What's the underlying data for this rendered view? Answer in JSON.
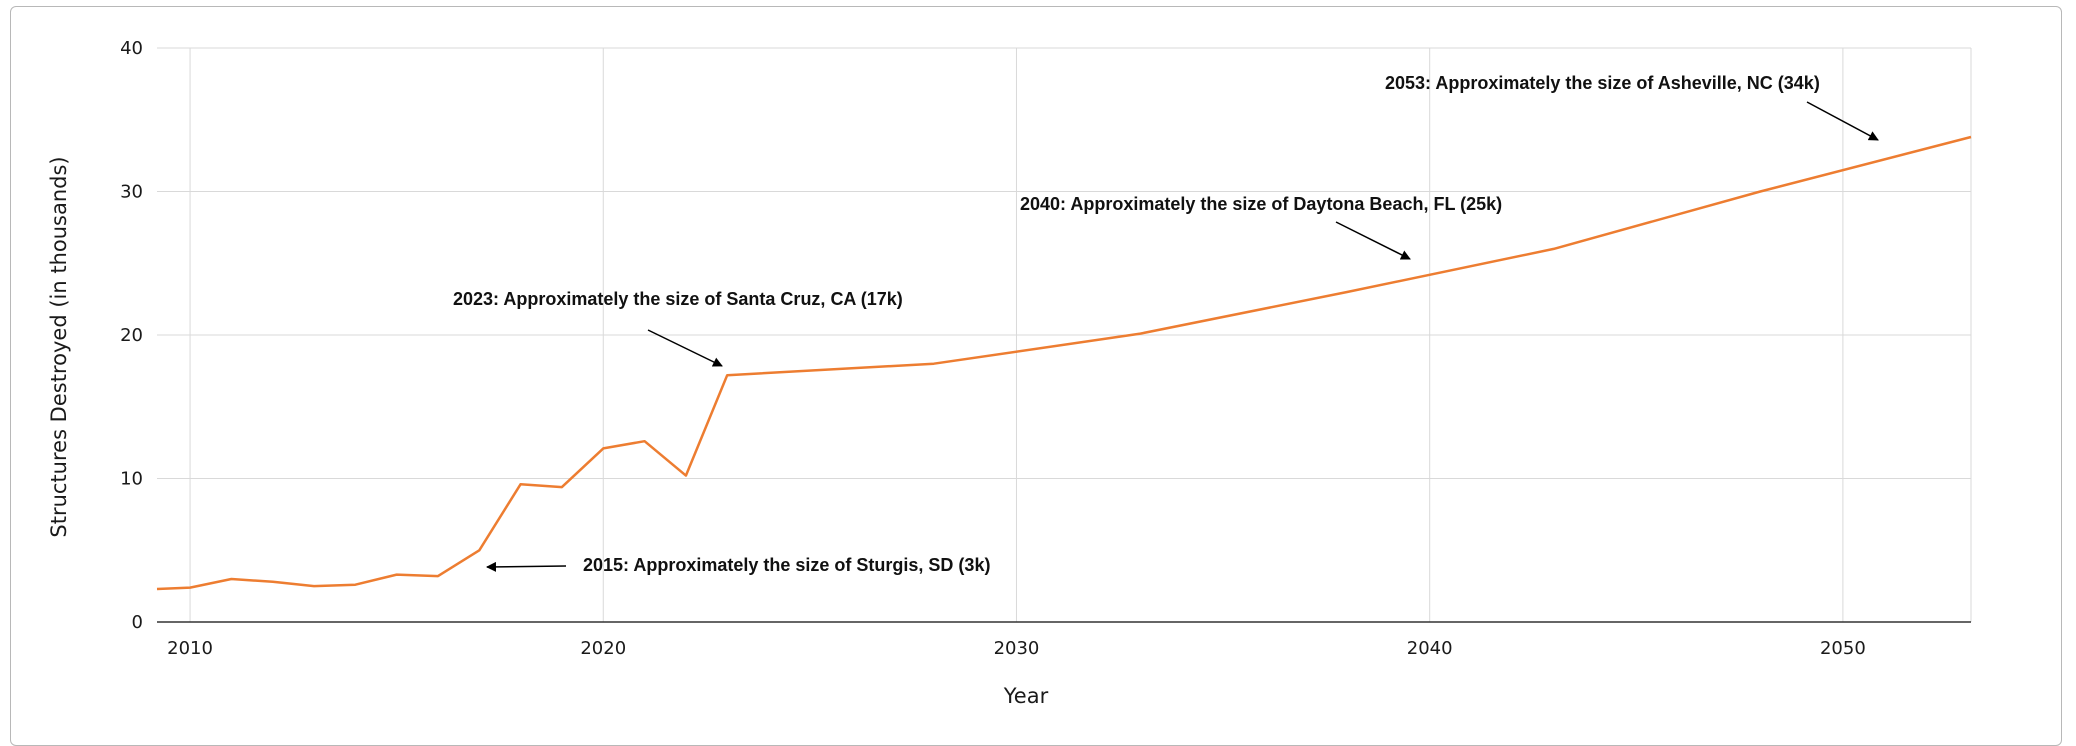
{
  "chart_data": {
    "type": "line",
    "title": "",
    "xlabel": "Year",
    "ylabel": "Structures Destroyed (in thousands)",
    "xlim": [
      2009.2,
      2053.1
    ],
    "ylim": [
      0,
      40
    ],
    "x_ticks": [
      2010,
      2020,
      2030,
      2040,
      2050
    ],
    "y_ticks": [
      0,
      10,
      20,
      30,
      40
    ],
    "grid": true,
    "legend": "none",
    "colors": {
      "line": "#ED7D31",
      "grid": "#d9d9d9",
      "axis": "#333333"
    },
    "series": [
      {
        "x": [
          2009.2,
          2010,
          2011,
          2012,
          2013,
          2014,
          2015,
          2016,
          2017,
          2018,
          2019,
          2020,
          2021,
          2022,
          2023,
          2028,
          2033,
          2038,
          2043,
          2048,
          2053.1
        ],
        "values": [
          2.3,
          2.4,
          3.0,
          2.8,
          2.5,
          2.6,
          3.3,
          3.2,
          5.0,
          9.6,
          9.4,
          12.1,
          12.6,
          10.2,
          17.2,
          18.0,
          20.1,
          23.0,
          26.0,
          30.0,
          33.8
        ]
      }
    ],
    "annotations": [
      {
        "text": "2015: Approximately the size of Sturgis, SD (3k)",
        "x": 2017,
        "y": 3.9
      },
      {
        "text": "2023: Approximately the size of Santa Cruz, CA (17k)",
        "x": 2023,
        "y": 17.8
      },
      {
        "text": "2040: Approximately the size of Daytona Beach, FL (25k)",
        "x": 2040,
        "y": 25
      },
      {
        "text": "2053: Approximately the size of Asheville, NC (34k)",
        "x": 2051,
        "y": 33.5
      }
    ]
  }
}
